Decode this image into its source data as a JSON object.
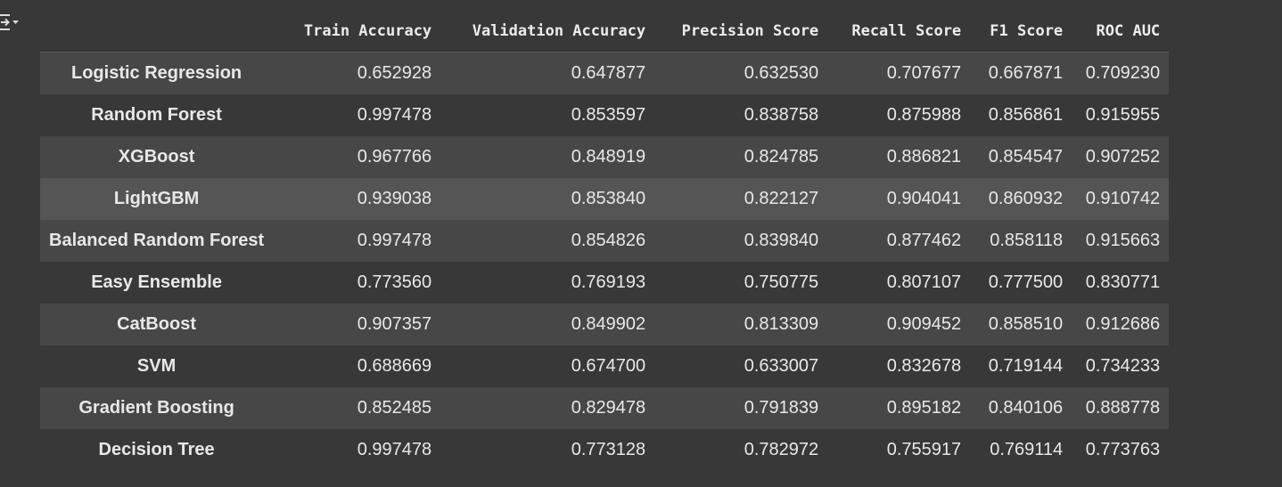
{
  "toolbar": {
    "output_toggle_icon": "output-collapse-icon"
  },
  "table": {
    "columns": [
      "Train Accuracy",
      "Validation Accuracy",
      "Precision Score",
      "Recall Score",
      "F1 Score",
      "ROC AUC"
    ],
    "rows": [
      {
        "model": "Logistic Regression",
        "values": [
          "0.652928",
          "0.647877",
          "0.632530",
          "0.707677",
          "0.667871",
          "0.709230"
        ]
      },
      {
        "model": "Random Forest",
        "values": [
          "0.997478",
          "0.853597",
          "0.838758",
          "0.875988",
          "0.856861",
          "0.915955"
        ]
      },
      {
        "model": "XGBoost",
        "values": [
          "0.967766",
          "0.848919",
          "0.824785",
          "0.886821",
          "0.854547",
          "0.907252"
        ]
      },
      {
        "model": "LightGBM",
        "values": [
          "0.939038",
          "0.853840",
          "0.822127",
          "0.904041",
          "0.860932",
          "0.910742"
        ]
      },
      {
        "model": "Balanced Random Forest",
        "values": [
          "0.997478",
          "0.854826",
          "0.839840",
          "0.877462",
          "0.858118",
          "0.915663"
        ]
      },
      {
        "model": "Easy Ensemble",
        "values": [
          "0.773560",
          "0.769193",
          "0.750775",
          "0.807107",
          "0.777500",
          "0.830771"
        ]
      },
      {
        "model": "CatBoost",
        "values": [
          "0.907357",
          "0.849902",
          "0.813309",
          "0.909452",
          "0.858510",
          "0.912686"
        ]
      },
      {
        "model": "SVM",
        "values": [
          "0.688669",
          "0.674700",
          "0.633007",
          "0.832678",
          "0.719144",
          "0.734233"
        ]
      },
      {
        "model": "Gradient Boosting",
        "values": [
          "0.852485",
          "0.829478",
          "0.791839",
          "0.895182",
          "0.840106",
          "0.888778"
        ]
      },
      {
        "model": "Decision Tree",
        "values": [
          "0.997478",
          "0.773128",
          "0.782972",
          "0.755917",
          "0.769114",
          "0.773763"
        ]
      }
    ]
  },
  "colors": {
    "background": "#383838",
    "row_odd": "#474747",
    "row_highlight": "#555555",
    "text": "#e8e8e8"
  }
}
